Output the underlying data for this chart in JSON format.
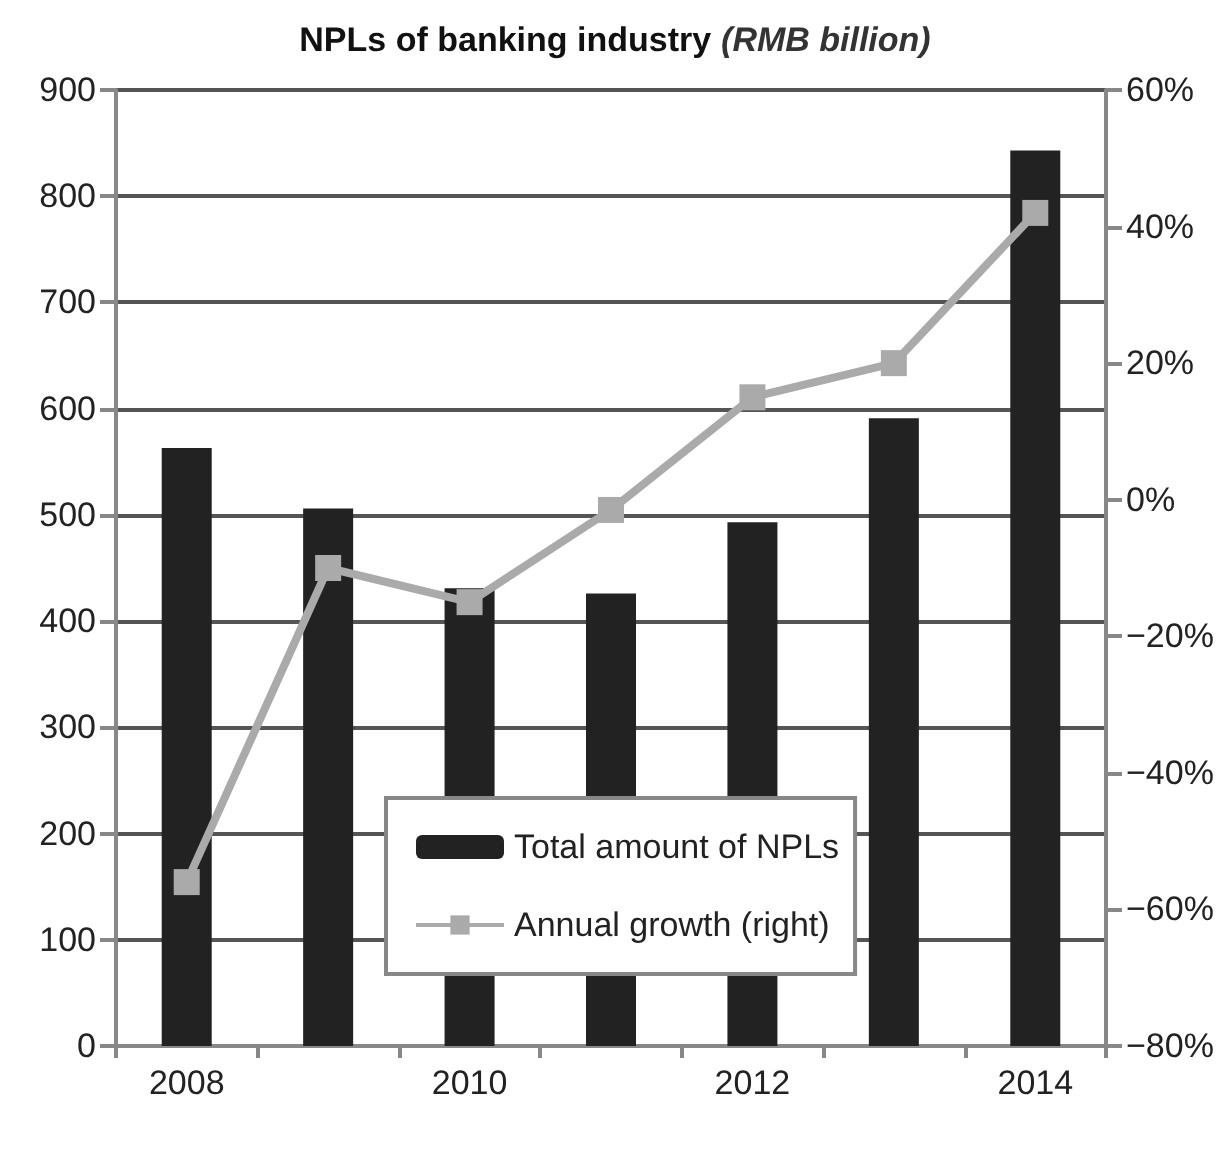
{
  "chart_data": {
    "type": "bar",
    "title": "NPLs of banking industry (RMB billion)",
    "categories": [
      "2008",
      null,
      "2010",
      null,
      "2012",
      null,
      "2014"
    ],
    "series": [
      {
        "name": "Total amount of NPLs",
        "color": "#222222",
        "values": [
          563,
          506,
          431,
          426,
          493,
          591,
          843
        ]
      },
      {
        "name": "Annual growth (right)",
        "type": "line",
        "axis": "y2",
        "color": "#aaaaaa",
        "marker": "square",
        "values": [
          -56,
          -10,
          -15,
          -1.5,
          15,
          20,
          42
        ]
      }
    ],
    "ylim": [
      0,
      900
    ],
    "yticks": [
      0,
      100,
      200,
      300,
      400,
      500,
      600,
      700,
      800,
      900
    ],
    "y2lim": [
      -80,
      60
    ],
    "y2ticks": [
      {
        "value": -80,
        "label": "−80%"
      },
      {
        "value": -60,
        "label": "−60%"
      },
      {
        "value": -40,
        "label": "−40%"
      },
      {
        "value": -20,
        "label": "−20%"
      },
      {
        "value": 0,
        "label": "0%"
      },
      {
        "value": 20,
        "label": "20%"
      },
      {
        "value": 40,
        "label": "40%"
      },
      {
        "value": 60,
        "label": "60%"
      }
    ],
    "grid": "y",
    "legend": "bottom"
  }
}
